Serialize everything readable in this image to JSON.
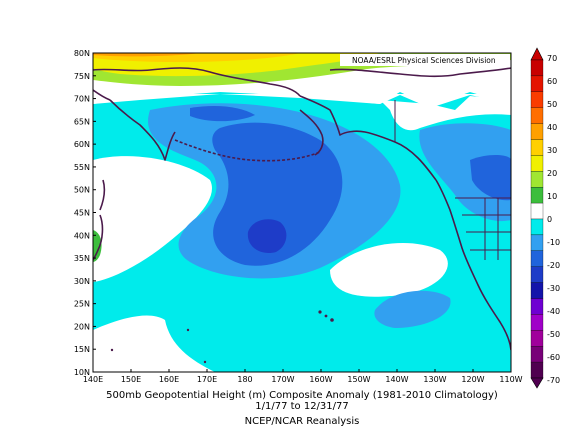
{
  "credit": "NOAA/ESRL Physical Sciences Division",
  "caption": {
    "line1": "500mb Geopotential Height (m) Composite Anomaly (1981-2010 Climatology)",
    "line2": "1/1/77  to 12/31/77",
    "line3": "NCEP/NCAR Reanalysis"
  },
  "lat_labels": [
    "80N",
    "75N",
    "70N",
    "65N",
    "60N",
    "55N",
    "50N",
    "45N",
    "40N",
    "35N",
    "30N",
    "25N",
    "20N",
    "15N",
    "10N"
  ],
  "lon_labels": [
    "140E",
    "150E",
    "160E",
    "170E",
    "180",
    "170W",
    "160W",
    "150W",
    "140W",
    "130W",
    "120W",
    "110W"
  ],
  "colorbar": {
    "labels": [
      "70",
      "60",
      "50",
      "40",
      "30",
      "20",
      "10",
      "0",
      "-10",
      "-20",
      "-30",
      "-40",
      "-50",
      "-60",
      "-70"
    ],
    "colors": [
      "#c80000",
      "#e41400",
      "#fa3c00",
      "#ff6e00",
      "#ffa000",
      "#ffd000",
      "#f0f000",
      "#a0e632",
      "#3cbe3c",
      "#ffffff",
      "#00ebeb",
      "#32a0f0",
      "#2064dc",
      "#1e3cc8",
      "#1414aa",
      "#6e00d2",
      "#a000c8",
      "#a0009b",
      "#780078",
      "#500050"
    ]
  },
  "colors": {
    "land_border": "#4b1a4b",
    "anomaly_m10": "#00ebeb",
    "anomaly_m20": "#32a0f0",
    "anomaly_m30": "#2064dc",
    "anomaly_m40": "#1e3cc8",
    "anomaly_p10": "#a0e632",
    "anomaly_p20": "#f0f000",
    "anomaly_p30": "#ffd000",
    "anomaly_p40": "#ffa000"
  }
}
